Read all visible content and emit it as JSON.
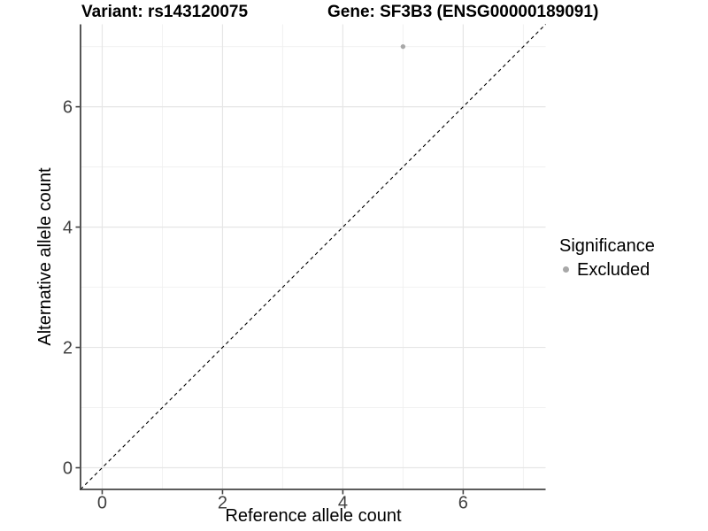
{
  "figure": {
    "title_variant": "Variant: rs143120075",
    "title_gene": "Gene: SF3B3 (ENSG00000189091)"
  },
  "legend": {
    "title": "Significance",
    "items": [
      {
        "label": "Excluded",
        "color": "#a8a8a8"
      }
    ]
  },
  "chart_data": {
    "type": "scatter",
    "title": "Variant: rs143120075 | Gene: SF3B3 (ENSG00000189091)",
    "xlabel": "Reference allele count",
    "ylabel": "Alternative allele count",
    "xlim": [
      -0.36,
      7.37
    ],
    "ylim": [
      -0.36,
      7.37
    ],
    "x_ticks": [
      0,
      2,
      4,
      6
    ],
    "y_ticks": [
      0,
      2,
      4,
      6
    ],
    "x_minor_ticks": [
      1,
      3,
      5,
      7
    ],
    "y_minor_ticks": [
      1,
      3,
      5,
      7
    ],
    "grid": "major+minor",
    "legend_position": "right",
    "series": [
      {
        "name": "Excluded",
        "color": "#a8a8a8",
        "points": [
          {
            "x": 5,
            "y": 7
          }
        ],
        "point_radius": 2.7
      }
    ],
    "reference_line": {
      "kind": "identity",
      "slope": 1,
      "intercept": 0,
      "line_style": "dashed",
      "color": "#000000"
    }
  },
  "colors": {
    "background": "#ffffff",
    "grid_major": "#e6e6e6",
    "grid_minor": "#f0f0f0",
    "axis_line": "#444444",
    "tick_mark": "#444444",
    "tick_label": "#404040",
    "text": "#000000"
  }
}
